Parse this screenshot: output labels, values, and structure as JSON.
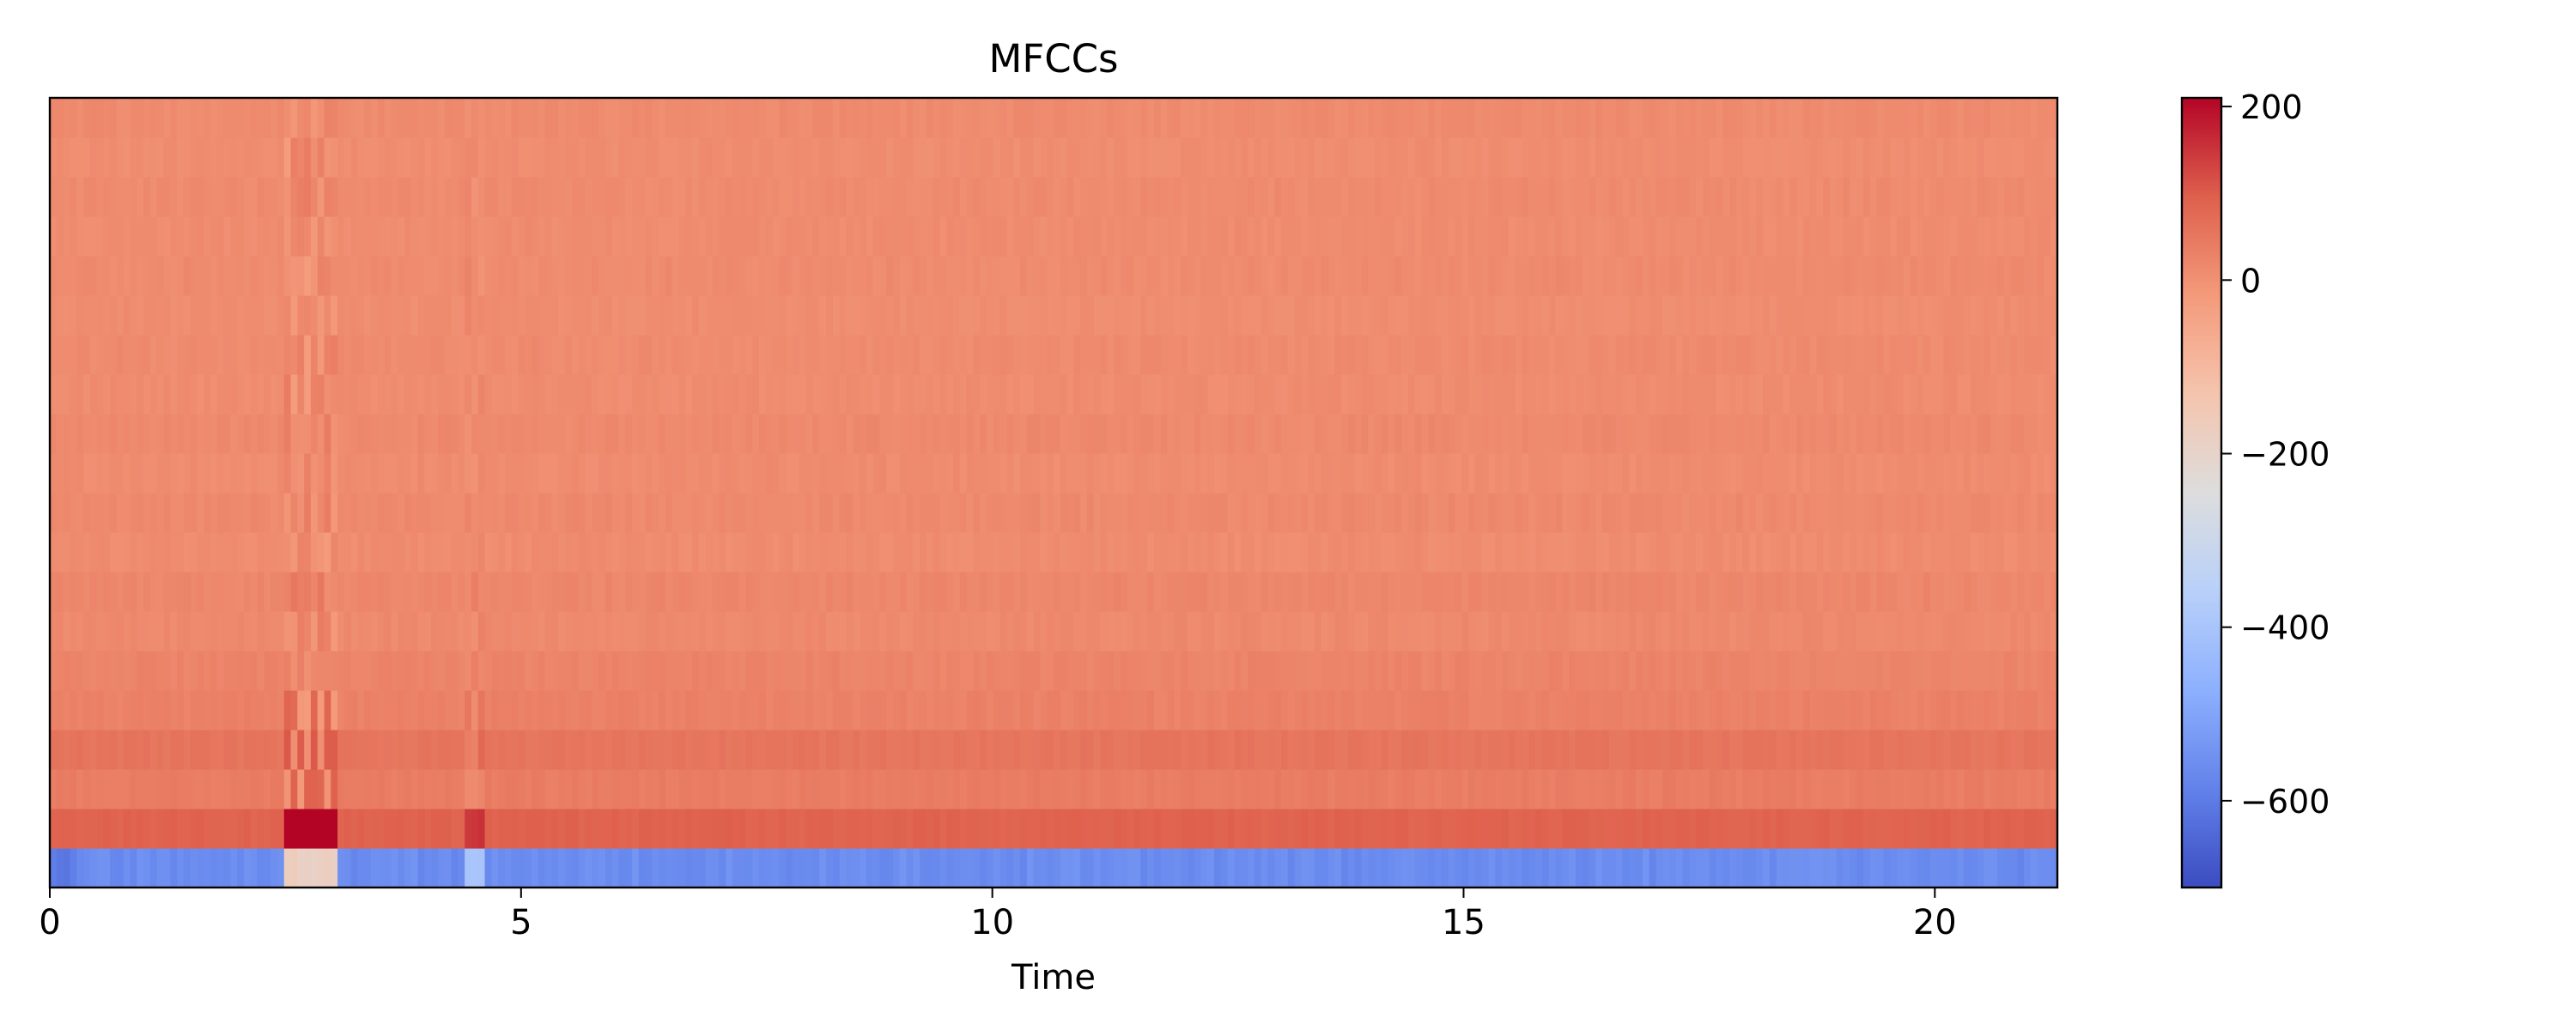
{
  "chart_data": {
    "type": "heatmap",
    "title": "MFCCs",
    "xlabel": "Time",
    "ylabel": "",
    "xlim": [
      0,
      21.3
    ],
    "x_ticks": [
      0,
      5,
      10,
      15,
      20
    ],
    "n_coefficients": 20,
    "colormap": "coolwarm",
    "colors": {
      "low": "#3b4cc0",
      "mid": "#dddddd",
      "high": "#b40426"
    },
    "colorbar": {
      "vmin": -700,
      "vmax": 210,
      "ticks": [
        200,
        0,
        -200,
        -400,
        -600
      ],
      "tick_labels": [
        "200",
        "0",
        "−200",
        "−400",
        "−600"
      ]
    },
    "coefficient_means": [
      -560,
      90,
      40,
      55,
      30,
      25,
      15,
      20,
      10,
      15,
      10,
      15,
      10,
      12,
      8,
      12,
      10,
      12,
      8,
      12
    ],
    "events": [
      {
        "time_start": 2.45,
        "time_end": 3.05,
        "description": "strong transient"
      },
      {
        "time_start": 4.4,
        "time_end": 4.6,
        "description": "small transient"
      }
    ]
  }
}
